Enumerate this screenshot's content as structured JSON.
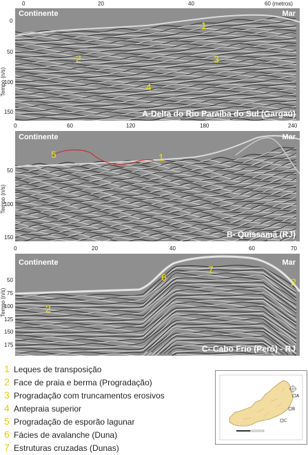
{
  "panels": {
    "a": {
      "left_label": "Continente",
      "right_label": "Mar",
      "title": "A-Delta do Rio Paraíba do Sul (Gargaú)",
      "x_ticks": [
        "0",
        "20",
        "40",
        "60 (metros)"
      ],
      "y_ticks": [
        "0",
        "50",
        "100",
        "150"
      ],
      "bottom_ticks": [
        "0",
        "60",
        "120",
        "180",
        "240"
      ],
      "ylabel": "Tempo (n/s)",
      "markers": [
        "1",
        "2",
        "3",
        "4"
      ]
    },
    "b": {
      "left_label": "Continente",
      "right_label": "Mar",
      "title": "B- Quissamã (RJ)",
      "y_ticks": [
        "50",
        "100",
        "150"
      ],
      "ylabel": "Tempo (n/s)",
      "markers": [
        "5",
        "1"
      ]
    },
    "c": {
      "left_label": "Continente",
      "right_label": "Mar",
      "title": "C- Cabo Frio (Peró) - RJ",
      "x_ticks": [
        "0",
        "20",
        "40",
        "60",
        "70"
      ],
      "y_ticks": [
        "50",
        "75",
        "100",
        "125",
        "150",
        "175"
      ],
      "ylabel": "Tempo (n/s)",
      "markers": [
        "6",
        "7",
        "2",
        "2"
      ]
    }
  },
  "legend": [
    {
      "num": "1",
      "text": "Leques de transposição"
    },
    {
      "num": "2",
      "text": "Face de praia e berma (Progradação)"
    },
    {
      "num": "3",
      "text": "Progradação com truncamentos erosivos"
    },
    {
      "num": "4",
      "text": "Antepraia superior"
    },
    {
      "num": "5",
      "text": "Progradação de esporão lagunar"
    },
    {
      "num": "6",
      "text": "Fácies de avalanche (Duna)"
    },
    {
      "num": "7",
      "text": "Estruturas cruzadas (Dunas)"
    }
  ],
  "map": {
    "labels": [
      "A",
      "B",
      "C"
    ],
    "colors": {
      "state_fill": "#f3dca0",
      "state_stroke": "#b79a55"
    }
  },
  "colors": {
    "panel_bg": "#8f8f8f",
    "marker": "#f2e600",
    "legend_num": "#e8cf00",
    "horizon_line": "#cc2222"
  }
}
